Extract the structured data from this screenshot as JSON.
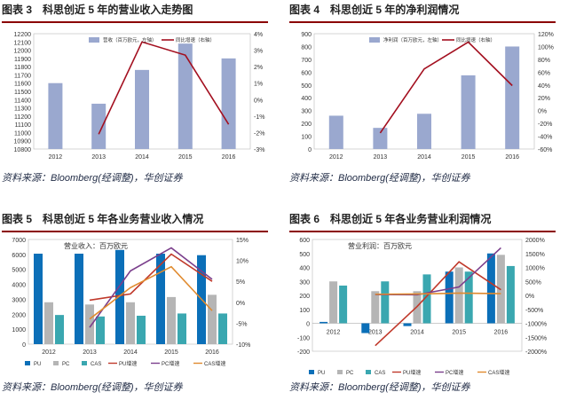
{
  "panels": [
    {
      "label": "图表 3",
      "title": "科思创近 5 年的营业收入走势图",
      "source": "资料来源：Bloomberg(经调整)，华创证券"
    },
    {
      "label": "图表 4",
      "title": "科思创近 5 年的净利润情况",
      "source": "资料来源：Bloomberg(经调整)，华创证券"
    },
    {
      "label": "图表 5",
      "title": "科思创近 5 年各业务营业收入情况",
      "source": "资料来源：Bloomberg(经调整)，华创证券"
    },
    {
      "label": "图表 6",
      "title": "科思创近 5 年各业务营业利润情况",
      "source": "资料来源：Bloomberg(经调整)，华创证券"
    }
  ],
  "colors": {
    "bar_main": "#9aa8cf",
    "line_main": "#a30f1f",
    "pu": "#0b6fb8",
    "pc": "#b5b5b5",
    "cas": "#3aa7b0",
    "pu_g": "#c0392b",
    "pc_g": "#7b3f8c",
    "cas_g": "#e08a2e"
  },
  "chart_data": [
    {
      "type": "bar",
      "categories": [
        "2012",
        "2013",
        "2014",
        "2015",
        "2016"
      ],
      "series": [
        {
          "name": "营收（百万欧元，左轴）",
          "type": "bar",
          "axis": "left",
          "values": [
            11600,
            11350,
            11760,
            12080,
            11900
          ]
        },
        {
          "name": "同比增速（右轴）",
          "type": "line",
          "axis": "right",
          "values": [
            null,
            -2.1,
            3.5,
            2.7,
            -1.5
          ]
        }
      ],
      "ylim_left": [
        10800,
        12200
      ],
      "yticks_left": [
        10800,
        10900,
        11000,
        11100,
        11200,
        11300,
        11400,
        11500,
        11600,
        11700,
        11800,
        11900,
        12000,
        12100,
        12200
      ],
      "ylim_right": [
        -3,
        4
      ],
      "yticks_right": [
        "-3%",
        "-2%",
        "-1%",
        "0%",
        "1%",
        "2%",
        "3%",
        "4%"
      ],
      "legend": "top"
    },
    {
      "type": "bar",
      "categories": [
        "2012",
        "2013",
        "2014",
        "2015",
        "2016"
      ],
      "series": [
        {
          "name": "净利润（百万欧元，左轴）",
          "type": "bar",
          "axis": "left",
          "values": [
            260,
            165,
            275,
            575,
            800
          ]
        },
        {
          "name": "同比增速（右轴）",
          "type": "line",
          "axis": "right",
          "values": [
            null,
            -35,
            65,
            107,
            39
          ]
        }
      ],
      "ylim_left": [
        0,
        900
      ],
      "yticks_left": [
        0,
        100,
        200,
        300,
        400,
        500,
        600,
        700,
        800,
        900
      ],
      "ylim_right": [
        -60,
        120
      ],
      "yticks_right": [
        "-60%",
        "-40%",
        "-20%",
        "0%",
        "20%",
        "40%",
        "60%",
        "80%",
        "100%",
        "120%"
      ],
      "legend": "top"
    },
    {
      "type": "bar",
      "annotation": "营业收入：百万欧元",
      "categories": [
        "2012",
        "2013",
        "2014",
        "2015",
        "2016"
      ],
      "series": [
        {
          "name": "PU",
          "type": "bar",
          "axis": "left",
          "values": [
            6050,
            6050,
            6300,
            6050,
            5950
          ]
        },
        {
          "name": "PC",
          "type": "bar",
          "axis": "left",
          "values": [
            2800,
            2650,
            2800,
            3150,
            3300
          ]
        },
        {
          "name": "CAS",
          "type": "bar",
          "axis": "left",
          "values": [
            1950,
            1850,
            1900,
            2050,
            2050
          ]
        },
        {
          "name": "PU增速",
          "type": "line",
          "axis": "right",
          "values": [
            null,
            0.5,
            2.0,
            11.5,
            5.0
          ]
        },
        {
          "name": "PC增速",
          "type": "line",
          "axis": "right",
          "values": [
            null,
            -6.0,
            7.5,
            13.0,
            5.5
          ]
        },
        {
          "name": "CAS增速",
          "type": "line",
          "axis": "right",
          "values": [
            null,
            -4.0,
            3.5,
            8.5,
            -2.0
          ]
        }
      ],
      "ylim_left": [
        0,
        7000
      ],
      "yticks_left": [
        0,
        1000,
        2000,
        3000,
        4000,
        5000,
        6000,
        7000
      ],
      "ylim_right": [
        -10,
        15
      ],
      "yticks_right": [
        "-10%",
        "-5%",
        "0%",
        "5%",
        "10%",
        "15%"
      ],
      "legend": "bottom"
    },
    {
      "type": "bar",
      "annotation": "营业利润：百万欧元",
      "categories": [
        "2012",
        "2013",
        "2014",
        "2015",
        "2016"
      ],
      "series": [
        {
          "name": "PU",
          "type": "bar",
          "axis": "left",
          "values": [
            10,
            -70,
            -20,
            370,
            500
          ]
        },
        {
          "name": "PC",
          "type": "bar",
          "axis": "left",
          "values": [
            300,
            230,
            230,
            400,
            490
          ]
        },
        {
          "name": "CAS",
          "type": "bar",
          "axis": "left",
          "values": [
            270,
            300,
            350,
            370,
            410
          ]
        },
        {
          "name": "PU增速",
          "type": "line",
          "axis": "right",
          "values": [
            null,
            -1800,
            -400,
            1200,
            200
          ]
        },
        {
          "name": "PC增速",
          "type": "line",
          "axis": "right",
          "values": [
            null,
            30,
            20,
            300,
            1700
          ]
        },
        {
          "name": "CAS增速",
          "type": "line",
          "axis": "right",
          "values": [
            null,
            40,
            50,
            80,
            60
          ]
        }
      ],
      "ylim_left": [
        -200,
        600
      ],
      "yticks_left": [
        -200,
        -100,
        0,
        100,
        200,
        300,
        400,
        500,
        600
      ],
      "ylim_right": [
        -2000,
        2000
      ],
      "yticks_right": [
        "-2000%",
        "-1500%",
        "-1000%",
        "-500%",
        "0%",
        "500%",
        "1000%",
        "1500%",
        "2000%"
      ],
      "legend": "bottom"
    }
  ]
}
